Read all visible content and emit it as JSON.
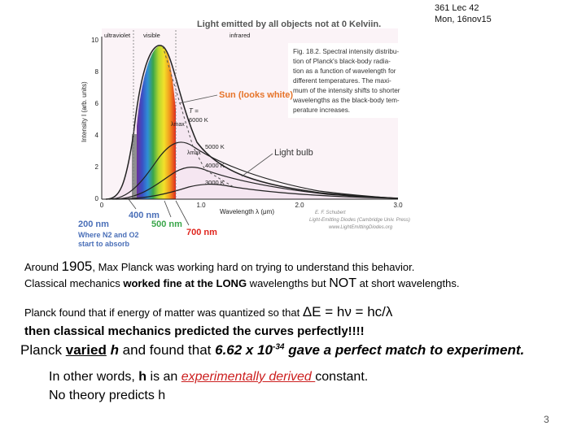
{
  "header": {
    "lecture": "361 Lec 42",
    "date": "Mon, 16nov15"
  },
  "figure": {
    "title": "Light emitted by all objects not at 0 Kelviin.",
    "band_labels": [
      "ultraviolet",
      "visible",
      "infrared"
    ],
    "y_axis_label": "Intensity  I  (arb. units)",
    "y_ticks": [
      "10",
      "8",
      "6",
      "4",
      "2",
      "0"
    ],
    "x_ticks": [
      "0",
      "1.0",
      "2.0",
      "3.0"
    ],
    "x_axis_label": "Wavelength  λ  (μm)",
    "caption_lines": [
      "Fig. 18.2. Spectral intensity distribu-",
      "tion of Planck's black-body radia-",
      "tion as a function of wavelength for",
      "different temperatures. The maxi-",
      "mum of the intensity shifts to shorter",
      "wavelengths as the black-body tem-",
      "perature increases."
    ],
    "sun_label": "Sun (looks white)",
    "bulb_label": "Light bulb",
    "temp_T": "T =",
    "temps": [
      "6000 K",
      "5000 K",
      "4000 K",
      "3000 K"
    ],
    "lambda_max": "λmax",
    "credit_lines": [
      "E. F. Schubert",
      "Light-Emitting Diodes (Cambridge Univ. Press)",
      "www.LightEmittingDiodes.org"
    ],
    "wl_200": "200 nm",
    "wl_400": "400 nm",
    "wl_500": "500 nm",
    "wl_700": "700 nm",
    "absorb_lines": [
      "Where N2 and O2",
      "start to absorb"
    ]
  },
  "text": {
    "l1_a": "Around ",
    "l1_year": "1905",
    "l1_b": ", Max Planck was working hard on trying to understand this behavior.",
    "l2_a": "Classical mechanics ",
    "l2_b": "worked fine at the LONG",
    "l2_c": " wavelengths but ",
    "l2_not": "NOT",
    "l2_d": " at short wavelengths.",
    "l3_a": "Planck found that if energy of matter was quantized  so that  ",
    "l3_eq": "ΔE =  hν  = hc/λ",
    "l4": "then classical mechanics predicted the curves perfectly!!!!",
    "l5_a": "Planck ",
    "l5_varied": "varied",
    "l5_b": " h",
    "l5_c": " and found that ",
    "l5_val": "6.62 x 10",
    "l5_exp": "-34",
    "l5_d": " gave a perfect match to experiment.",
    "l6_a": "In other words, ",
    "l6_h": "h",
    "l6_b": " is an ",
    "l6_exp": "experimentally derived ",
    "l6_c": "constant.",
    "l7": "No theory predicts h"
  },
  "page_number": "3",
  "colors": {
    "accent_red": "#cc1f1f",
    "curve_fill": "#f5e6f1"
  }
}
